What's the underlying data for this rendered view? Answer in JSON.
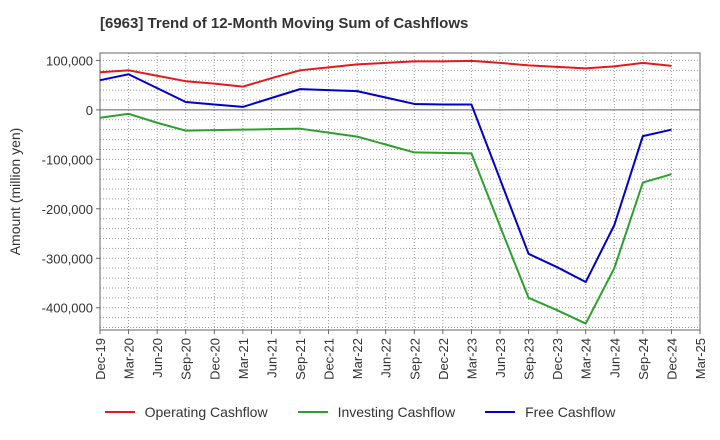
{
  "chart_data": {
    "type": "line",
    "title": "[6963]  Trend of 12-Month Moving Sum of Cashflows",
    "xlabel": "",
    "ylabel": "Amount (million yen)",
    "categories": [
      "Dec-19",
      "Mar-20",
      "Jun-20",
      "Sep-20",
      "Dec-20",
      "Mar-21",
      "Jun-21",
      "Sep-21",
      "Dec-21",
      "Mar-22",
      "Jun-22",
      "Sep-22",
      "Dec-22",
      "Mar-23",
      "Jun-23",
      "Sep-23",
      "Dec-23",
      "Mar-24",
      "Jun-24",
      "Sep-24",
      "Dec-24",
      "Mar-25"
    ],
    "y_ticks": [
      100000,
      0,
      -100000,
      -200000,
      -300000,
      -400000
    ],
    "y_tick_labels": [
      "100,000",
      "0",
      "-100,000",
      "-200,000",
      "-300,000",
      "-400,000"
    ],
    "ylim": [
      -445000,
      115000
    ],
    "grid": true,
    "legend_position": "bottom",
    "series": [
      {
        "name": "Operating Cashflow",
        "color": "#e31a1c",
        "values": [
          76000,
          80000,
          69000,
          58000,
          53000,
          47000,
          64000,
          80000,
          86000,
          92000,
          95000,
          98000,
          98000,
          99000,
          95000,
          90000,
          87000,
          84000,
          88000,
          95000,
          89000,
          null
        ]
      },
      {
        "name": "Investing Cashflow",
        "color": "#2ca02c",
        "values": [
          -16000,
          -8000,
          -26000,
          -42000,
          -41000,
          -40000,
          -39000,
          -38000,
          -46000,
          -54000,
          -70000,
          -86000,
          -87000,
          -88000,
          -235000,
          -380000,
          -405000,
          -432000,
          -320000,
          -147000,
          -130000,
          null
        ]
      },
      {
        "name": "Free Cashflow",
        "color": "#0000cc",
        "values": [
          60000,
          72000,
          44000,
          16000,
          11000,
          6000,
          24000,
          42000,
          40000,
          38000,
          25000,
          12000,
          11000,
          11000,
          -140000,
          -291000,
          -318000,
          -348000,
          -233000,
          -53000,
          -40000,
          null
        ]
      }
    ]
  }
}
